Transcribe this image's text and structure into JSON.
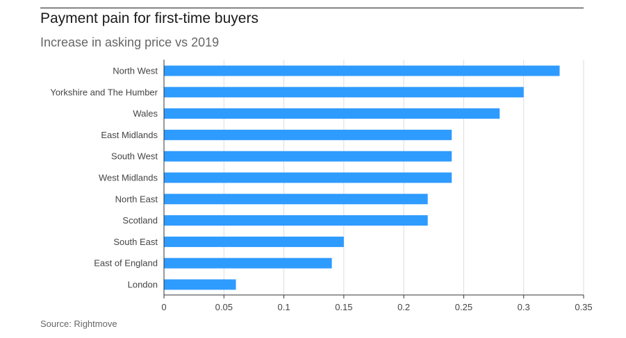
{
  "title": "Payment pain for first-time buyers",
  "subtitle": "Increase in asking price vs 2019",
  "source": "Source: Rightmove",
  "colors": {
    "bar": "#2e9bff",
    "grid": "#dddddd",
    "axis": "#333333",
    "label": "#444444"
  },
  "chart_data": {
    "type": "bar",
    "orientation": "horizontal",
    "categories": [
      "North West",
      "Yorkshire and The Humber",
      "Wales",
      "East Midlands",
      "South West",
      "West Midlands",
      "North East",
      "Scotland",
      "South East",
      "East of England",
      "London"
    ],
    "values": [
      0.33,
      0.3,
      0.28,
      0.24,
      0.24,
      0.24,
      0.22,
      0.22,
      0.15,
      0.14,
      0.06
    ],
    "xlim": [
      0,
      0.35
    ],
    "xticks": [
      0,
      0.05,
      0.1,
      0.15,
      0.2,
      0.25,
      0.3,
      0.35
    ],
    "xtick_labels": [
      "0",
      "0.05",
      "0.1",
      "0.15",
      "0.2",
      "0.25",
      "0.3",
      "0.35"
    ],
    "xlabel": "",
    "ylabel": "",
    "grid": "vertical"
  }
}
